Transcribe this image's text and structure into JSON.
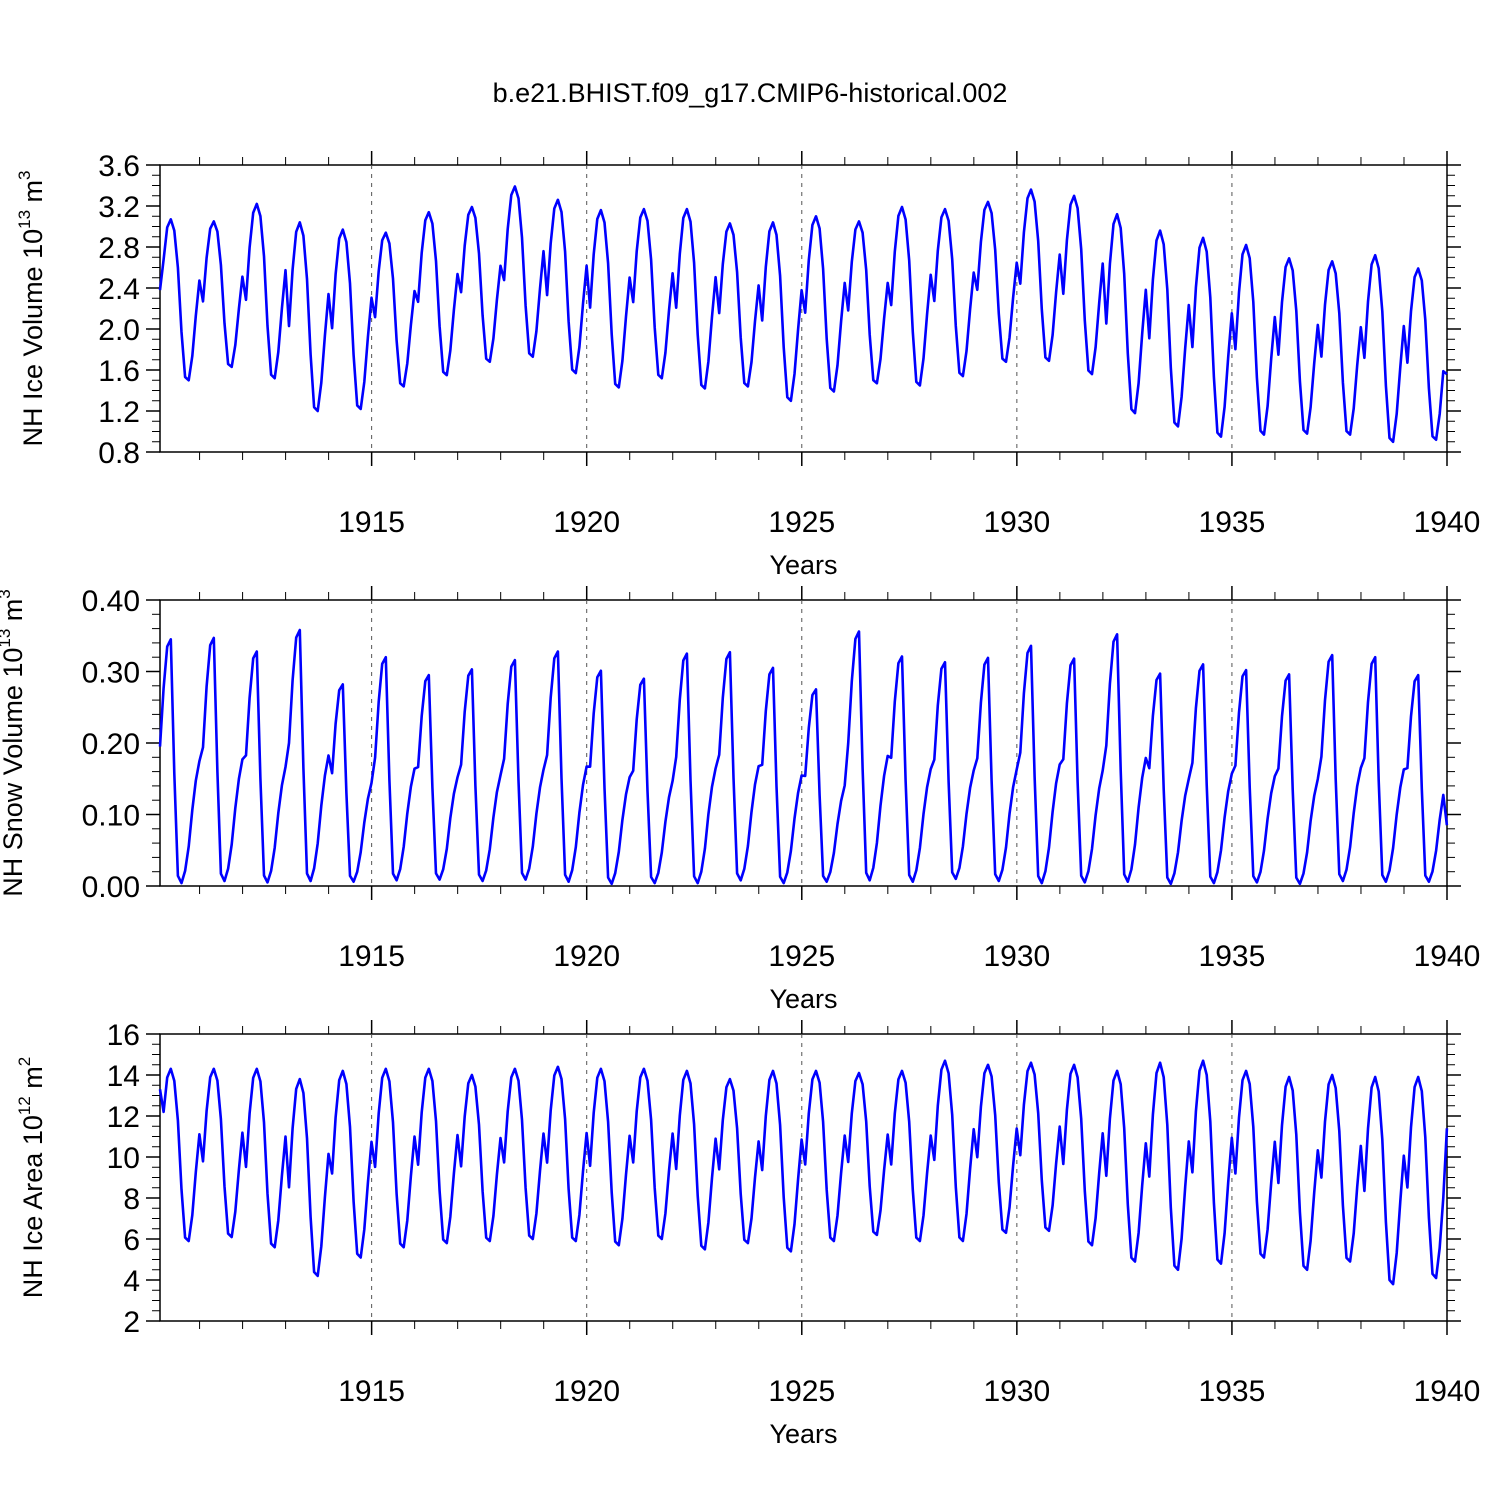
{
  "figure": {
    "title": "b.e21.BHIST.f09_g17.CMIP6-historical.002",
    "line_color": "#0000ff"
  },
  "chart_data": [
    {
      "type": "line",
      "id": "ice-volume",
      "ylabel_main": "NH Ice Volume 10",
      "ylabel_exp": "13",
      "ylabel_unit": " m",
      "ylabel_unit_exp": "3",
      "xlabel": "Years",
      "xlim": [
        1910.08,
        1940.0
      ],
      "ylim": [
        0.8,
        3.6
      ],
      "yticks": [
        0.8,
        1.2,
        1.6,
        2.0,
        2.4,
        2.8,
        3.2,
        3.6
      ],
      "ytick_labels": [
        "0.8",
        "1.2",
        "1.6",
        "2.0",
        "2.4",
        "2.8",
        "3.2",
        "3.6"
      ],
      "ytick_minor_step": 0.1,
      "xticks": [
        1915,
        1920,
        1925,
        1930,
        1935,
        1940
      ],
      "xtick_labels": [
        "1915",
        "1920",
        "1925",
        "1930",
        "1935",
        "1940"
      ],
      "xtick_minor_step": 1,
      "gridlines_x": [
        1915,
        1920,
        1925,
        1930,
        1935
      ],
      "series": [
        {
          "name": "NH Ice Volume",
          "x_start": 1910.08,
          "x_step": 0.0833333,
          "annual_max": [
            3.07,
            3.05,
            3.22,
            3.04,
            2.97,
            2.94,
            3.14,
            3.19,
            3.39,
            3.26,
            3.16,
            3.17,
            3.17,
            3.03,
            3.04,
            3.1,
            3.05,
            3.19,
            3.17,
            3.24,
            3.36,
            3.3,
            3.12,
            2.96,
            2.89,
            2.82,
            2.69,
            2.66,
            2.72,
            2.59
          ],
          "annual_min": [
            1.5,
            1.63,
            1.52,
            1.2,
            1.22,
            1.44,
            1.55,
            1.68,
            1.73,
            1.57,
            1.43,
            1.52,
            1.42,
            1.44,
            1.3,
            1.39,
            1.47,
            1.45,
            1.54,
            1.68,
            1.69,
            1.56,
            1.18,
            1.05,
            0.95,
            0.97,
            0.98,
            0.97,
            0.9,
            0.92
          ],
          "first_value": 2.38,
          "last_value": 1.56
        }
      ]
    },
    {
      "type": "line",
      "id": "snow-volume",
      "ylabel_main": "NH Snow Volume 10",
      "ylabel_exp": "13",
      "ylabel_unit": " m",
      "ylabel_unit_exp": "3",
      "xlabel": "Years",
      "xlim": [
        1910.08,
        1940.0
      ],
      "ylim": [
        0.0,
        0.4
      ],
      "yticks": [
        0.0,
        0.1,
        0.2,
        0.3,
        0.4
      ],
      "ytick_labels": [
        "0.00",
        "0.10",
        "0.20",
        "0.30",
        "0.40"
      ],
      "ytick_minor_step": 0.02,
      "xticks": [
        1915,
        1920,
        1925,
        1930,
        1935,
        1940
      ],
      "xtick_labels": [
        "1915",
        "1920",
        "1925",
        "1930",
        "1935",
        "1940"
      ],
      "xtick_minor_step": 1,
      "gridlines_x": [
        1915,
        1920,
        1925,
        1930,
        1935
      ],
      "series": [
        {
          "name": "NH Snow Volume",
          "x_start": 1910.08,
          "x_step": 0.0833333,
          "annual_max": [
            0.345,
            0.347,
            0.328,
            0.358,
            0.282,
            0.32,
            0.295,
            0.303,
            0.316,
            0.328,
            0.301,
            0.29,
            0.325,
            0.327,
            0.305,
            0.275,
            0.356,
            0.321,
            0.313,
            0.319,
            0.336,
            0.318,
            0.352,
            0.297,
            0.31,
            0.302,
            0.296,
            0.323,
            0.32,
            0.295
          ],
          "annual_min": [
            0.004,
            0.007,
            0.005,
            0.007,
            0.006,
            0.008,
            0.009,
            0.007,
            0.009,
            0.006,
            0.003,
            0.004,
            0.004,
            0.008,
            0.004,
            0.006,
            0.008,
            0.006,
            0.01,
            0.007,
            0.004,
            0.005,
            0.006,
            0.003,
            0.004,
            0.005,
            0.003,
            0.007,
            0.006,
            0.006
          ],
          "first_value": 0.195,
          "last_value": 0.085
        }
      ]
    },
    {
      "type": "line",
      "id": "ice-area",
      "ylabel_main": "NH Ice Area 10",
      "ylabel_exp": "12",
      "ylabel_unit": " m",
      "ylabel_unit_exp": "2",
      "xlabel": "Years",
      "xlim": [
        1910.08,
        1940.0
      ],
      "ylim": [
        2,
        16
      ],
      "yticks": [
        2,
        4,
        6,
        8,
        10,
        12,
        14,
        16
      ],
      "ytick_labels": [
        "2",
        "4",
        "6",
        "8",
        "10",
        "12",
        "14",
        "16"
      ],
      "ytick_minor_step": 0.5,
      "xticks": [
        1915,
        1920,
        1925,
        1930,
        1935,
        1940
      ],
      "xtick_labels": [
        "1915",
        "1920",
        "1925",
        "1930",
        "1935",
        "1940"
      ],
      "xtick_minor_step": 1,
      "gridlines_x": [
        1915,
        1920,
        1925,
        1930,
        1935
      ],
      "series": [
        {
          "name": "NH Ice Area",
          "x_start": 1910.08,
          "x_step": 0.0833333,
          "annual_max": [
            14.3,
            14.3,
            14.3,
            13.8,
            14.2,
            14.3,
            14.3,
            14.0,
            14.3,
            14.4,
            14.3,
            14.3,
            14.2,
            13.8,
            14.2,
            14.2,
            14.1,
            14.2,
            14.7,
            14.5,
            14.6,
            14.5,
            14.2,
            14.6,
            14.7,
            14.2,
            13.9,
            14.0,
            13.9,
            13.9
          ],
          "annual_min": [
            5.9,
            6.1,
            5.6,
            4.2,
            5.1,
            5.6,
            5.8,
            5.9,
            6.0,
            5.9,
            5.7,
            6.0,
            5.5,
            5.8,
            5.4,
            5.9,
            6.2,
            5.9,
            5.9,
            6.3,
            6.4,
            5.7,
            4.9,
            4.5,
            4.8,
            5.1,
            4.5,
            4.9,
            3.8,
            4.1
          ],
          "first_value": 13.3,
          "last_value": 11.4
        }
      ]
    }
  ]
}
